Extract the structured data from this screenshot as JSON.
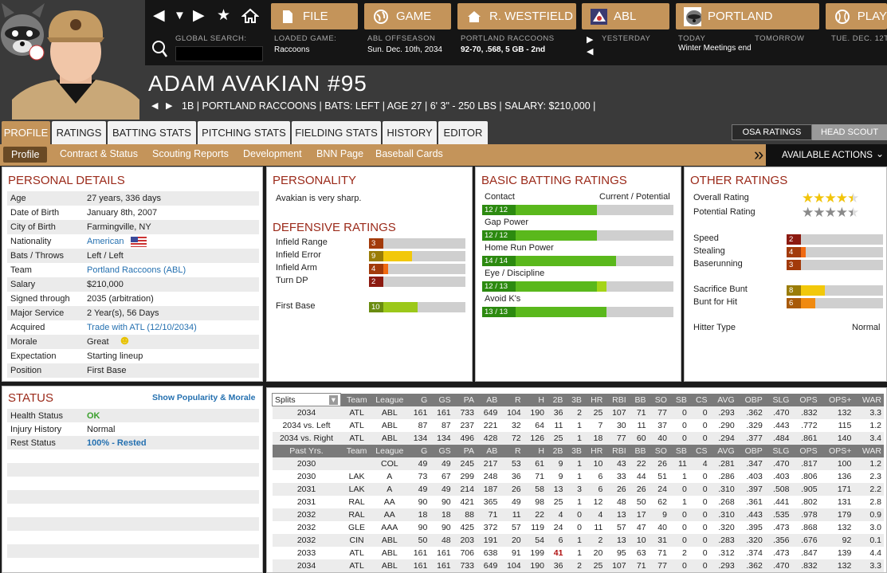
{
  "nav": {
    "file": "FILE",
    "game": "GAME",
    "manager": "R. WESTFIELD",
    "league": "ABL",
    "team": "PORTLAND",
    "play": "PLAY"
  },
  "info": {
    "global_search_label": "GLOBAL SEARCH:",
    "loaded_game_label": "LOADED GAME:",
    "loaded_game_value": "Raccoons",
    "phase_label": "ABL OFFSEASON",
    "date_value": "Sun. Dec. 10th, 2034",
    "team_label": "PORTLAND RACCOONS",
    "team_record": "92-70, .568, 5 GB - 2nd",
    "yesterday": "YESTERDAY",
    "today": "TODAY",
    "tomorrow": "TOMORROW",
    "next_day": "TUE. DEC. 12T",
    "event": "Winter Meetings end"
  },
  "player": {
    "name": "ADAM AVAKIAN  #95",
    "info": "1B | PORTLAND RACCOONS  |  BATS: LEFT  |  AGE 27  |  6' 3\" - 250 LBS  |  SALARY: $210,000  |"
  },
  "tabs": [
    "PROFILE",
    "RATINGS",
    "BATTING STATS",
    "PITCHING STATS",
    "FIELDING STATS",
    "HISTORY",
    "EDITOR"
  ],
  "switch": {
    "osa": "OSA RATINGS",
    "scout": "HEAD SCOUT"
  },
  "subtabs": [
    "Profile",
    "Contract & Status",
    "Scouting Reports",
    "Development",
    "BNN Page",
    "Baseball Cards"
  ],
  "actions": "AVAILABLE ACTIONS",
  "personal": {
    "title": "PERSONAL DETAILS",
    "rows": [
      {
        "k": "Age",
        "v": "27 years, 336 days"
      },
      {
        "k": "Date of Birth",
        "v": "January 8th, 2007"
      },
      {
        "k": "City of Birth",
        "v": "Farmingville, NY"
      },
      {
        "k": "Nationality",
        "v": "American"
      },
      {
        "k": "Bats / Throws",
        "v": "Left / Left"
      },
      {
        "k": "Team",
        "v": "Portland Raccoons (ABL)"
      },
      {
        "k": "Salary",
        "v": "$210,000"
      },
      {
        "k": "Signed through",
        "v": "2035 (arbitration)"
      },
      {
        "k": "Major Service",
        "v": "2 Year(s), 56 Days"
      },
      {
        "k": "Acquired",
        "v": "Trade with ATL (12/10/2034)"
      },
      {
        "k": "Morale",
        "v": "Great"
      },
      {
        "k": "Expectation",
        "v": "Starting lineup"
      },
      {
        "k": "Position",
        "v": "First Base"
      }
    ]
  },
  "personality": {
    "title": "PERSONALITY",
    "text": "Avakian is very sharp."
  },
  "defensive": {
    "title": "DEFENSIVE RATINGS",
    "rows": [
      {
        "k": "Infield Range",
        "v": "3",
        "level": 3
      },
      {
        "k": "Infield Error",
        "v": "9",
        "level": 9
      },
      {
        "k": "Infield Arm",
        "v": "4",
        "level": 4
      },
      {
        "k": "Turn DP",
        "v": "2",
        "level": 2
      },
      {
        "k": "First Base",
        "v": "10",
        "level": 10
      }
    ]
  },
  "batting": {
    "title": "BASIC BATTING RATINGS",
    "header": "Current / Potential",
    "rows": [
      {
        "k": "Contact",
        "v": "12 / 12",
        "cur": 12,
        "pot": 12
      },
      {
        "k": "Gap Power",
        "v": "12 / 12",
        "cur": 12,
        "pot": 12
      },
      {
        "k": "Home Run Power",
        "v": "14 / 14",
        "cur": 14,
        "pot": 14
      },
      {
        "k": "Eye / Discipline",
        "v": "12 / 13",
        "cur": 12,
        "pot": 13
      },
      {
        "k": "Avoid K's",
        "v": "13 / 13",
        "cur": 13,
        "pot": 13
      }
    ]
  },
  "other": {
    "title": "OTHER RATINGS",
    "overall_label": "Overall Rating",
    "overall_stars": 4.5,
    "potential_label": "Potential Rating",
    "potential_stars": 4.5,
    "speed": [
      {
        "k": "Speed",
        "v": "2",
        "level": 2
      },
      {
        "k": "Stealing",
        "v": "4",
        "level": 4
      },
      {
        "k": "Baserunning",
        "v": "3",
        "level": 3
      }
    ],
    "bunt": [
      {
        "k": "Sacrifice Bunt",
        "v": "8",
        "level": 8
      },
      {
        "k": "Bunt for Hit",
        "v": "6",
        "level": 6
      }
    ],
    "hitter_label": "Hitter Type",
    "hitter_value": "Normal"
  },
  "status": {
    "title": "STATUS",
    "link": "Show Popularity & Morale",
    "rows": [
      {
        "k": "Health Status",
        "v": "OK"
      },
      {
        "k": "Injury History",
        "v": "Normal"
      },
      {
        "k": "Rest Status",
        "v": "100% - Rested"
      }
    ]
  },
  "stats": {
    "select": "Splits",
    "columns": [
      "Team",
      "League",
      "G",
      "GS",
      "PA",
      "AB",
      "R",
      "H",
      "2B",
      "3B",
      "HR",
      "RBI",
      "BB",
      "SO",
      "SB",
      "CS",
      "AVG",
      "OBP",
      "SLG",
      "OPS",
      "OPS+",
      "WAR"
    ],
    "splits": [
      [
        "2034",
        "ATL",
        "ABL",
        "161",
        "161",
        "733",
        "649",
        "104",
        "190",
        "36",
        "2",
        "25",
        "107",
        "71",
        "77",
        "0",
        "0",
        ".293",
        ".362",
        ".470",
        ".832",
        "132",
        "3.3"
      ],
      [
        "2034 vs. Left",
        "ATL",
        "ABL",
        "87",
        "87",
        "237",
        "221",
        "32",
        "64",
        "11",
        "1",
        "7",
        "30",
        "11",
        "37",
        "0",
        "0",
        ".290",
        ".329",
        ".443",
        ".772",
        "115",
        "1.2"
      ],
      [
        "2034 vs. Right",
        "ATL",
        "ABL",
        "134",
        "134",
        "496",
        "428",
        "72",
        "126",
        "25",
        "1",
        "18",
        "77",
        "60",
        "40",
        "0",
        "0",
        ".294",
        ".377",
        ".484",
        ".861",
        "140",
        "3.4"
      ]
    ],
    "past_label": "Past Yrs.",
    "past": [
      [
        "2030",
        "",
        "COL",
        "49",
        "49",
        "245",
        "217",
        "53",
        "61",
        "9",
        "1",
        "10",
        "43",
        "22",
        "26",
        "11",
        "4",
        ".281",
        ".347",
        ".470",
        ".817",
        "100",
        "1.2"
      ],
      [
        "2030",
        "LAK",
        "A",
        "73",
        "67",
        "299",
        "248",
        "36",
        "71",
        "9",
        "1",
        "6",
        "33",
        "44",
        "51",
        "1",
        "0",
        ".286",
        ".403",
        ".403",
        ".806",
        "136",
        "2.3"
      ],
      [
        "2031",
        "LAK",
        "A",
        "49",
        "49",
        "214",
        "187",
        "26",
        "58",
        "13",
        "3",
        "6",
        "26",
        "26",
        "24",
        "0",
        "0",
        ".310",
        ".397",
        ".508",
        ".905",
        "171",
        "2.2"
      ],
      [
        "2031",
        "RAL",
        "AA",
        "90",
        "90",
        "421",
        "365",
        "49",
        "98",
        "25",
        "1",
        "12",
        "48",
        "50",
        "62",
        "1",
        "0",
        ".268",
        ".361",
        ".441",
        ".802",
        "131",
        "2.8"
      ],
      [
        "2032",
        "RAL",
        "AA",
        "18",
        "18",
        "88",
        "71",
        "11",
        "22",
        "4",
        "0",
        "4",
        "13",
        "17",
        "9",
        "0",
        "0",
        ".310",
        ".443",
        ".535",
        ".978",
        "179",
        "0.9"
      ],
      [
        "2032",
        "GLE",
        "AAA",
        "90",
        "90",
        "425",
        "372",
        "57",
        "119",
        "24",
        "0",
        "11",
        "57",
        "47",
        "40",
        "0",
        "0",
        ".320",
        ".395",
        ".473",
        ".868",
        "132",
        "3.0"
      ],
      [
        "2032",
        "CIN",
        "ABL",
        "50",
        "48",
        "203",
        "191",
        "20",
        "54",
        "6",
        "1",
        "2",
        "13",
        "10",
        "31",
        "0",
        "0",
        ".283",
        ".320",
        ".356",
        ".676",
        "92",
        "0.1"
      ],
      [
        "2033",
        "ATL",
        "ABL",
        "161",
        "161",
        "706",
        "638",
        "91",
        "199",
        "41",
        "1",
        "20",
        "95",
        "63",
        "71",
        "2",
        "0",
        ".312",
        ".374",
        ".473",
        ".847",
        "139",
        "4.4"
      ],
      [
        "2034",
        "ATL",
        "ABL",
        "161",
        "161",
        "733",
        "649",
        "104",
        "190",
        "36",
        "2",
        "25",
        "107",
        "71",
        "77",
        "0",
        "0",
        ".293",
        ".362",
        ".470",
        ".832",
        "132",
        "3.3"
      ]
    ],
    "highlight": {
      "row": 7,
      "col": 9
    }
  },
  "colors": {
    "accent": "#c4945a",
    "title": "#9b2a1a",
    "link": "#2470b0",
    "ok": "#3aa02c"
  }
}
